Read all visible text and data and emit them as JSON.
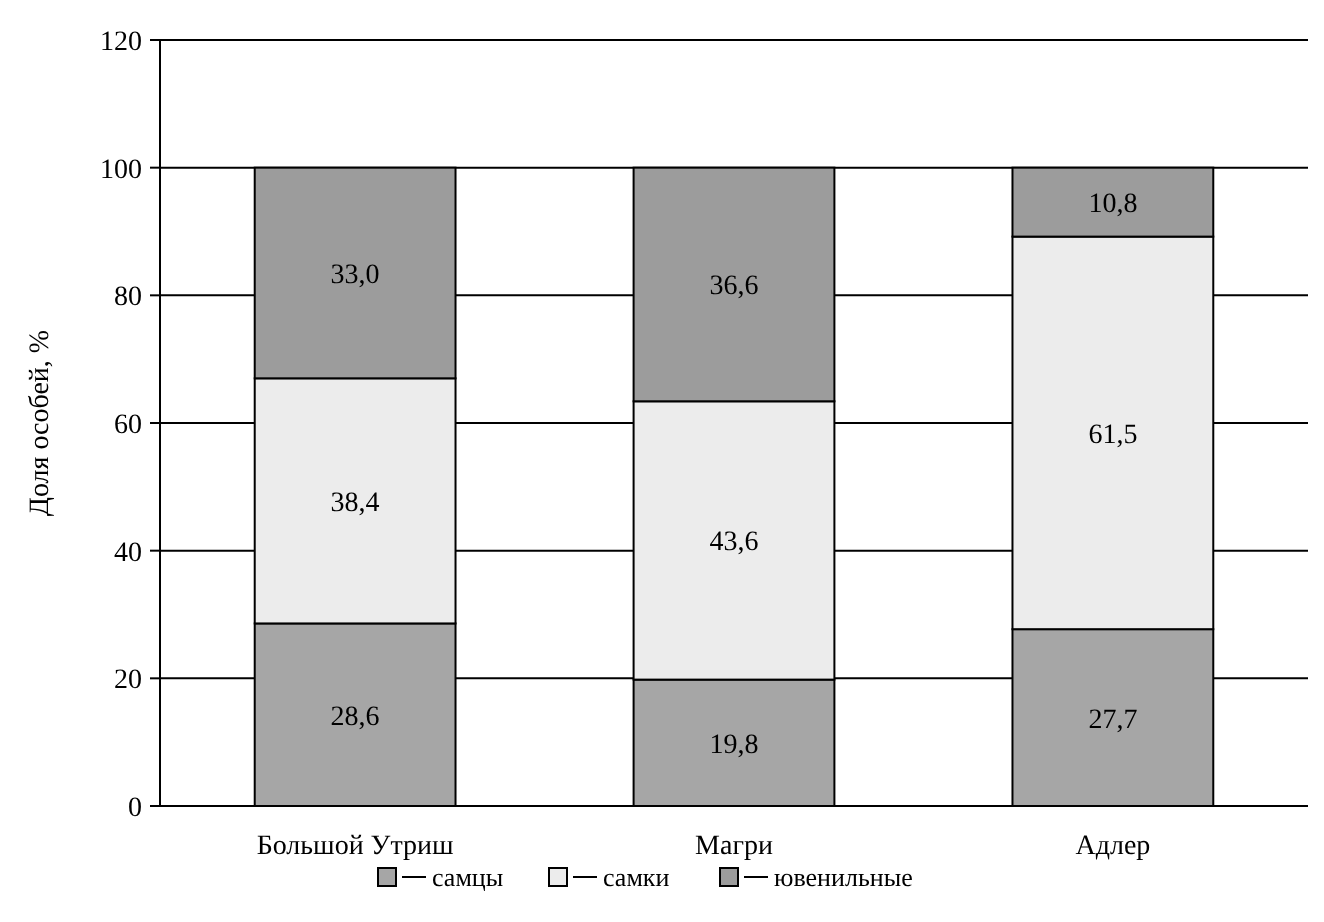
{
  "chart_data": {
    "type": "bar",
    "stacked": true,
    "ylabel": "Доля особей, %",
    "categories": [
      "Большой Утриш",
      "Магри",
      "Адлер"
    ],
    "ylim": [
      0,
      120
    ],
    "yticks": [
      0,
      20,
      40,
      60,
      80,
      100,
      120
    ],
    "grid": "y",
    "legend": "bottom",
    "series": [
      {
        "name": "самцы",
        "color": "#a6a6a6",
        "values": [
          28.6,
          19.8,
          27.7
        ],
        "value_labels": [
          "28,6",
          "19,8",
          "27,7"
        ]
      },
      {
        "name": "самки",
        "color": "#ececec",
        "values": [
          38.4,
          43.6,
          61.5
        ],
        "value_labels": [
          "38,4",
          "43,6",
          "61,5"
        ]
      },
      {
        "name": "ювенильные",
        "color": "#9c9c9c",
        "values": [
          33.0,
          36.6,
          10.8
        ],
        "value_labels": [
          "33,0",
          "36,6",
          "10,8"
        ]
      }
    ]
  }
}
